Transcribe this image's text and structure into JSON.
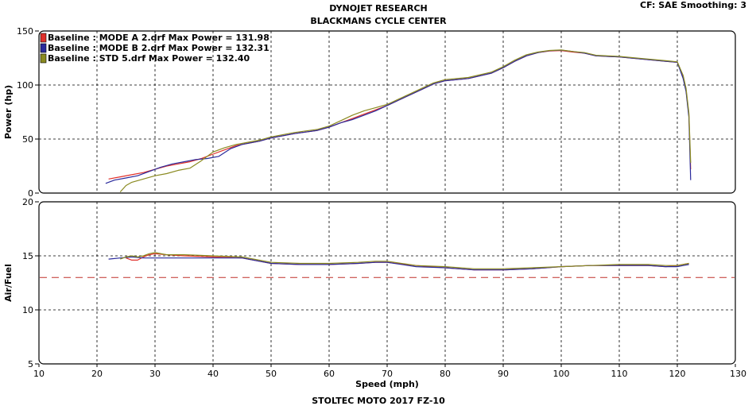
{
  "header": {
    "title_line1": "DYNOJET RESEARCH",
    "title_line2": "BLACKMANS CYCLE CENTER",
    "settings": "CF: SAE  Smoothing: 3"
  },
  "footer": {
    "caption": "STOLTEC MOTO 2017 FZ-10"
  },
  "chart_data": [
    {
      "type": "line",
      "panel": "power",
      "ylabel": "Power (hp)",
      "xlim": [
        10,
        130
      ],
      "ylim": [
        0,
        150
      ],
      "y_ticks": [
        0,
        50,
        100,
        150
      ],
      "grid": true,
      "legend_placement": "top-left",
      "legend": [
        {
          "label": "Baseline : MODE A 2.drf Max Power = 131.98",
          "color": "#e0302a"
        },
        {
          "label": "Baseline : MODE B 2.drf Max Power = 132.31",
          "color": "#2a2a9c"
        },
        {
          "label": "Baseline : STD 5.drf Max Power = 132.40",
          "color": "#8a8a20"
        }
      ],
      "series": [
        {
          "name": "Baseline : MODE A 2.drf Max Power = 131.98",
          "color": "#e0302a",
          "x": [
            22,
            24,
            26,
            28,
            30,
            32,
            34,
            36,
            38,
            40,
            42,
            44,
            46,
            48,
            50,
            54,
            58,
            60,
            62,
            64,
            66,
            68,
            70,
            72,
            74,
            76,
            78,
            80,
            84,
            88,
            90,
            92,
            94,
            96,
            98,
            100,
            102,
            104,
            106,
            110,
            114,
            118,
            120,
            121,
            121.5,
            122,
            122.3
          ],
          "y": [
            13,
            15,
            17,
            19,
            22,
            25,
            27,
            29,
            32,
            36,
            40,
            44,
            46,
            48,
            51,
            55,
            58,
            61,
            65,
            69,
            73,
            77,
            81,
            86,
            91,
            96,
            101,
            104,
            106,
            111,
            116,
            122,
            127,
            130,
            131.5,
            131.9,
            130.5,
            129.5,
            127,
            126,
            124,
            122,
            121,
            108,
            95,
            72,
            22
          ]
        },
        {
          "name": "Baseline : MODE B 2.drf Max Power = 132.31",
          "color": "#2a2a9c",
          "x": [
            21.5,
            23,
            25,
            27,
            29,
            31,
            33,
            35,
            37,
            39,
            41,
            43,
            45,
            48,
            50,
            54,
            58,
            60,
            62,
            64,
            66,
            68,
            70,
            72,
            74,
            76,
            78,
            80,
            84,
            88,
            90,
            92,
            94,
            96,
            98,
            100,
            102,
            104,
            106,
            110,
            114,
            118,
            120,
            121,
            121.5,
            122,
            122.3
          ],
          "y": [
            9,
            12,
            14,
            16,
            20,
            24,
            27,
            29,
            31,
            32,
            34,
            41,
            45,
            48,
            51,
            55,
            58,
            61,
            65,
            68,
            72,
            76,
            81,
            86,
            91,
            96,
            101,
            104,
            106,
            111,
            116,
            122,
            127,
            130,
            131.8,
            132.3,
            131,
            129.5,
            127,
            126,
            124,
            122,
            121,
            106,
            94,
            70,
            12
          ]
        },
        {
          "name": "Baseline : STD 5.drf Max Power = 132.40",
          "color": "#8a8a20",
          "x": [
            24,
            25,
            26,
            28,
            30,
            32,
            34,
            36,
            38,
            40,
            42,
            44,
            46,
            48,
            50,
            54,
            58,
            60,
            62,
            64,
            66,
            68,
            70,
            72,
            74,
            76,
            78,
            80,
            84,
            88,
            90,
            92,
            94,
            96,
            98,
            100,
            102,
            104,
            106,
            110,
            114,
            118,
            120,
            121,
            121.5,
            122,
            122.3
          ],
          "y": [
            1,
            7,
            10,
            13,
            16,
            18,
            21,
            23,
            30,
            38,
            42,
            45,
            47,
            49,
            52,
            56,
            59,
            62,
            67,
            72,
            76,
            79,
            82,
            87,
            92,
            97,
            102,
            105,
            107,
            112,
            117,
            123,
            128,
            130.5,
            132,
            132.4,
            131,
            130,
            127.5,
            126.5,
            124.5,
            122.5,
            121.5,
            109,
            97,
            74,
            28
          ]
        }
      ]
    },
    {
      "type": "line",
      "panel": "air_fuel",
      "xlabel": "Speed (mph)",
      "ylabel": "Air/Fuel",
      "xlim": [
        10,
        130
      ],
      "ylim": [
        5,
        20
      ],
      "x_ticks": [
        10,
        20,
        30,
        40,
        50,
        60,
        70,
        80,
        90,
        100,
        110,
        120,
        130
      ],
      "y_ticks": [
        5,
        10,
        15,
        20
      ],
      "grid": true,
      "reference_line": {
        "y": 13,
        "color": "#c0302a",
        "style": "dashed"
      },
      "series": [
        {
          "name": "Baseline : MODE A 2.drf Max Power = 131.98",
          "color": "#e0302a",
          "x": [
            25,
            26,
            27,
            28,
            29,
            30,
            32,
            35,
            40,
            45,
            50,
            55,
            60,
            65,
            68,
            70,
            75,
            80,
            85,
            90,
            95,
            100,
            105,
            110,
            115,
            118,
            120,
            121,
            122
          ],
          "y": [
            14.8,
            14.6,
            14.6,
            14.9,
            15.1,
            15.2,
            15.1,
            15.0,
            14.9,
            14.8,
            14.3,
            14.2,
            14.2,
            14.3,
            14.4,
            14.4,
            14.1,
            13.9,
            13.7,
            13.7,
            13.8,
            14.0,
            14.1,
            14.1,
            14.1,
            14.0,
            14.1,
            14.2,
            14.3
          ]
        },
        {
          "name": "Baseline : MODE B 2.drf Max Power = 132.31",
          "color": "#2a2a9c",
          "x": [
            22,
            24,
            26,
            28,
            30,
            32,
            35,
            40,
            45,
            50,
            55,
            60,
            65,
            68,
            70,
            75,
            80,
            85,
            90,
            95,
            100,
            105,
            110,
            115,
            118,
            120,
            121,
            122
          ],
          "y": [
            14.7,
            14.8,
            14.9,
            14.8,
            14.8,
            14.8,
            14.8,
            14.8,
            14.8,
            14.3,
            14.2,
            14.2,
            14.3,
            14.4,
            14.4,
            14.0,
            13.9,
            13.7,
            13.7,
            13.8,
            14.0,
            14.1,
            14.1,
            14.1,
            14.0,
            14.0,
            14.1,
            14.2
          ]
        },
        {
          "name": "Baseline : STD 5.drf Max Power = 132.40",
          "color": "#8a8a20",
          "x": [
            24,
            25,
            26,
            27,
            28,
            29,
            30,
            32,
            35,
            40,
            45,
            50,
            55,
            60,
            65,
            68,
            70,
            75,
            80,
            85,
            90,
            95,
            100,
            105,
            110,
            115,
            118,
            120,
            121,
            122
          ],
          "y": [
            14.7,
            14.9,
            15.0,
            14.9,
            15.0,
            15.2,
            15.3,
            15.1,
            15.1,
            15.0,
            14.9,
            14.4,
            14.3,
            14.3,
            14.4,
            14.5,
            14.5,
            14.1,
            14.0,
            13.8,
            13.8,
            13.9,
            14.0,
            14.1,
            14.2,
            14.2,
            14.1,
            14.1,
            14.2,
            14.3
          ]
        }
      ]
    }
  ]
}
